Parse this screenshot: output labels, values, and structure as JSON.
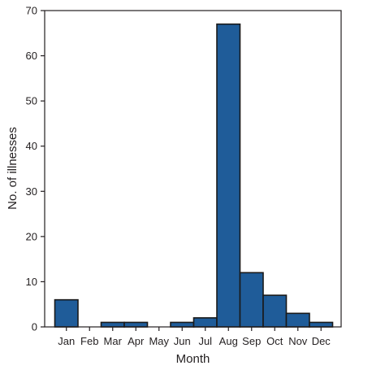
{
  "chart_data": {
    "type": "bar",
    "title": "",
    "xlabel": "Month",
    "ylabel": "No. of illnesses",
    "categories": [
      "Jan",
      "Feb",
      "Mar",
      "Apr",
      "May",
      "Jun",
      "Jul",
      "Aug",
      "Sep",
      "Oct",
      "Nov",
      "Dec"
    ],
    "values": [
      6,
      0,
      1,
      1,
      0,
      1,
      2,
      67,
      12,
      7,
      3,
      1
    ],
    "ylim": [
      0,
      70
    ],
    "yticks": [
      0,
      10,
      20,
      30,
      40,
      50,
      60,
      70
    ],
    "grid": false,
    "legend": "none",
    "bar_color": "#1f5c99",
    "bar_edge_color": "#1a1a1a",
    "axis_color": "#231f20"
  }
}
